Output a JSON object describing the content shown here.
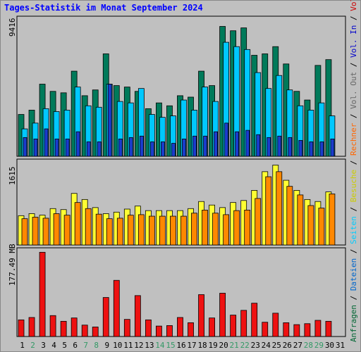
{
  "title": "Tages-Statistik im Monat September 2024",
  "colors": {
    "background": "#c0c0c0",
    "title": "#0000ff",
    "anfragen": "#007a5a",
    "dateien": "#00c8ff",
    "seiten": "#1a3ccc",
    "besuche": "#ffff33",
    "rechner": "#ff8800",
    "volume_in": "#ee1111",
    "weekend_day": "#339966",
    "weekday": "#000000"
  },
  "legend_right": {
    "top": [
      {
        "text": "Anfragen",
        "color": "#006633"
      },
      {
        "text": " / ",
        "color": "#000000"
      },
      {
        "text": "Dateien",
        "color": "#0066cc"
      },
      {
        "text": " / ",
        "color": "#000000"
      },
      {
        "text": "Seiten",
        "color": "#00ccff"
      },
      {
        "text": " / ",
        "color": "#000000"
      },
      {
        "text": "Besuche",
        "color": "#cccc00"
      },
      {
        "text": " / ",
        "color": "#000000"
      },
      {
        "text": "Rechner",
        "color": "#ff6600"
      },
      {
        "text": " / ",
        "color": "#000000"
      },
      {
        "text": "Vol. Out",
        "color": "#666666"
      },
      {
        "text": " / ",
        "color": "#000000"
      },
      {
        "text": "Vol. In",
        "color": "#0000cc"
      },
      {
        "text": " / ",
        "color": "#000000"
      },
      {
        "text": "Volumen",
        "color": "#cc0000"
      }
    ]
  },
  "chart_data": [
    {
      "type": "bar",
      "panel": "top",
      "max_label": "9416",
      "ylim": [
        0,
        9416
      ],
      "categories": [
        "1",
        "2",
        "3",
        "4",
        "5",
        "6",
        "7",
        "8",
        "9",
        "10",
        "11",
        "12",
        "13",
        "14",
        "15",
        "16",
        "17",
        "18",
        "19",
        "20",
        "21",
        "22",
        "23",
        "24",
        "25",
        "26",
        "27",
        "28",
        "29",
        "30",
        "31"
      ],
      "series": [
        {
          "name": "Anfragen",
          "values": [
            2900,
            3200,
            5000,
            4500,
            4400,
            5900,
            4200,
            4600,
            7100,
            4900,
            4800,
            4500,
            3300,
            3700,
            3500,
            4200,
            4100,
            5900,
            4900,
            9000,
            8700,
            8900,
            7000,
            7100,
            7600,
            6400,
            4500,
            3900,
            6300,
            6700,
            0
          ]
        },
        {
          "name": "Dateien",
          "values": [
            1900,
            2300,
            3300,
            3100,
            3200,
            4800,
            3500,
            3400,
            5000,
            3800,
            3700,
            4700,
            2900,
            2700,
            2800,
            3900,
            3200,
            4800,
            3800,
            7900,
            7600,
            7400,
            5800,
            4700,
            5600,
            4600,
            3500,
            3200,
            3700,
            2800,
            0
          ]
        },
        {
          "name": "Seiten",
          "values": [
            1300,
            1200,
            1900,
            1200,
            1200,
            1700,
            1000,
            1000,
            5000,
            1200,
            1300,
            1400,
            1000,
            1000,
            900,
            1200,
            1400,
            1400,
            1700,
            2300,
            1700,
            1800,
            1500,
            1300,
            1400,
            1300,
            1100,
            1000,
            1000,
            1200,
            0
          ]
        }
      ]
    },
    {
      "type": "bar",
      "panel": "middle",
      "max_label": "1615",
      "ylim": [
        0,
        1615
      ],
      "categories": [
        "1",
        "2",
        "3",
        "4",
        "5",
        "6",
        "7",
        "8",
        "9",
        "10",
        "11",
        "12",
        "13",
        "14",
        "15",
        "16",
        "17",
        "18",
        "19",
        "20",
        "21",
        "22",
        "23",
        "24",
        "25",
        "26",
        "27",
        "28",
        "29",
        "30",
        "31"
      ],
      "series": [
        {
          "name": "Besuche",
          "values": [
            580,
            620,
            590,
            720,
            700,
            1020,
            900,
            740,
            620,
            650,
            710,
            770,
            680,
            680,
            680,
            680,
            720,
            860,
            790,
            740,
            840,
            880,
            1080,
            1450,
            1580,
            1280,
            1080,
            900,
            860,
            1050,
            0
          ]
        },
        {
          "name": "Rechner",
          "values": [
            520,
            550,
            530,
            620,
            590,
            840,
            720,
            610,
            520,
            530,
            590,
            600,
            570,
            570,
            570,
            570,
            630,
            690,
            630,
            600,
            680,
            690,
            920,
            1350,
            1450,
            1160,
            990,
            780,
            730,
            1010,
            0
          ]
        }
      ]
    },
    {
      "type": "bar",
      "panel": "bottom",
      "max_label": "177.49 MB",
      "ylim": [
        0,
        177.49
      ],
      "categories": [
        "1",
        "2",
        "3",
        "4",
        "5",
        "6",
        "7",
        "8",
        "9",
        "10",
        "11",
        "12",
        "13",
        "14",
        "15",
        "16",
        "17",
        "18",
        "19",
        "20",
        "21",
        "22",
        "23",
        "24",
        "25",
        "26",
        "27",
        "28",
        "29",
        "30",
        "31"
      ],
      "series": [
        {
          "name": "Volumen",
          "values": [
            35,
            40,
            177,
            44,
            32,
            39,
            24,
            20,
            82,
            118,
            36,
            86,
            35,
            22,
            23,
            40,
            29,
            88,
            39,
            91,
            45,
            55,
            70,
            30,
            49,
            29,
            25,
            27,
            34,
            32,
            0
          ]
        }
      ]
    }
  ],
  "x_day_colors": [
    "#000000",
    "#339966",
    "#000000",
    "#000000",
    "#000000",
    "#000000",
    "#339966",
    "#339966",
    "#000000",
    "#000000",
    "#000000",
    "#000000",
    "#000000",
    "#339966",
    "#339966",
    "#000000",
    "#000000",
    "#000000",
    "#000000",
    "#000000",
    "#339966",
    "#339966",
    "#000000",
    "#000000",
    "#000000",
    "#000000",
    "#000000",
    "#339966",
    "#339966",
    "#000000",
    "#000000"
  ]
}
